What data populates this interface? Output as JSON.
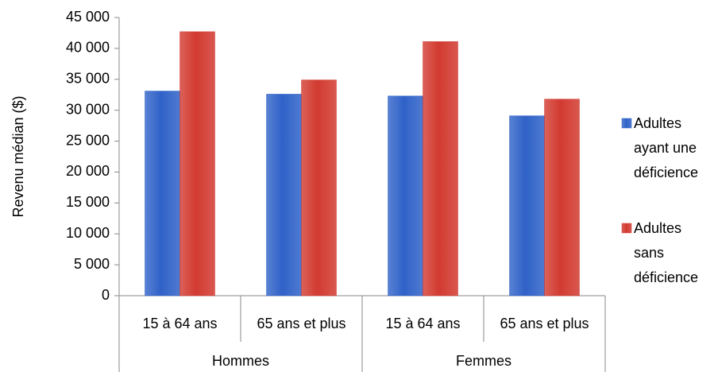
{
  "chart_data": {
    "type": "bar",
    "y_axis_label": "Revenu médian ($)",
    "categories": [
      "15 à 64 ans",
      "65 ans et plus",
      "15 à 64 ans",
      "65 ans et plus"
    ],
    "category_groups": [
      "Hommes",
      "Hommes",
      "Femmes",
      "Femmes"
    ],
    "series": [
      {
        "name": "Adultes ayant une déficience",
        "color": "#2f62c8",
        "values": [
          33100,
          32600,
          32300,
          29100
        ]
      },
      {
        "name": "Adultes sans déficience",
        "color": "#d23a30",
        "values": [
          42700,
          34900,
          41100,
          31800
        ]
      }
    ],
    "ylim": [
      0,
      45000
    ],
    "yticks": [
      0,
      {
        "value": 5000,
        "label": "5 000"
      },
      {
        "value": 10000,
        "label": "10 000"
      },
      {
        "value": 15000,
        "label": "15 000"
      },
      {
        "value": 20000,
        "label": "20 000"
      },
      {
        "value": 25000,
        "label": "25 000"
      },
      {
        "value": 30000,
        "label": "30 000"
      },
      {
        "value": 35000,
        "label": "35 000"
      },
      {
        "value": 40000,
        "label": "40 000"
      },
      {
        "value": 45000,
        "label": "45 000"
      }
    ],
    "grid": false,
    "legend": "right"
  }
}
